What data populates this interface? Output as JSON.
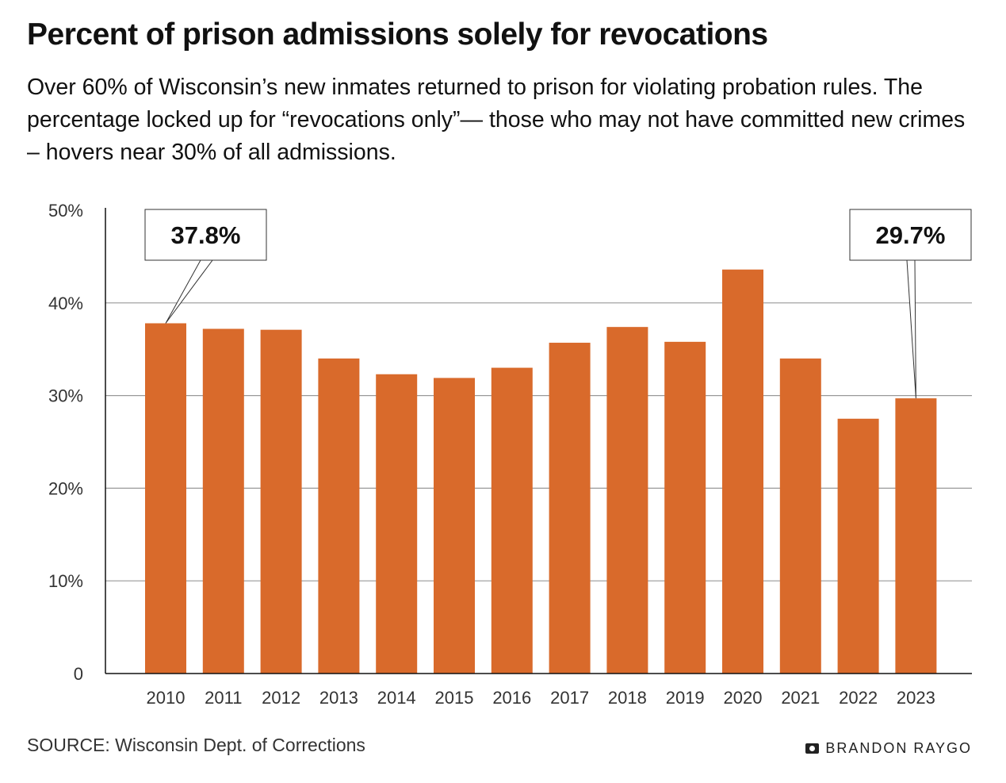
{
  "chart_data": {
    "type": "bar",
    "title": "Percent of prison admissions solely for revocations",
    "subtitle": "Over 60% of Wisconsin’s new inmates returned to prison for violating probation rules. The percentage locked up for “revocations only”— those who may not have committed new crimes – hovers near 30% of all admissions.",
    "categories": [
      "2010",
      "2011",
      "2012",
      "2013",
      "2014",
      "2015",
      "2016",
      "2017",
      "2018",
      "2019",
      "2020",
      "2021",
      "2022",
      "2023"
    ],
    "values": [
      37.8,
      37.2,
      37.1,
      34.0,
      32.3,
      31.9,
      33.0,
      35.7,
      37.4,
      35.8,
      43.6,
      34.0,
      27.5,
      29.7
    ],
    "ylim": [
      0,
      50
    ],
    "yticks": [
      0,
      10,
      20,
      30,
      40,
      50
    ],
    "ytick_labels": [
      "0",
      "10%",
      "20%",
      "30%",
      "40%",
      "50%"
    ],
    "grid": true,
    "bar_color": "#d96a2b",
    "annotations": [
      {
        "category": "2010",
        "label": "37.8%"
      },
      {
        "category": "2023",
        "label": "29.7%"
      }
    ],
    "xlabel": "",
    "ylabel": ""
  },
  "footer": {
    "source": "SOURCE: Wisconsin Dept. of Corrections",
    "credit": "BRANDON RAYGO",
    "credit_icon": "camera-icon"
  }
}
